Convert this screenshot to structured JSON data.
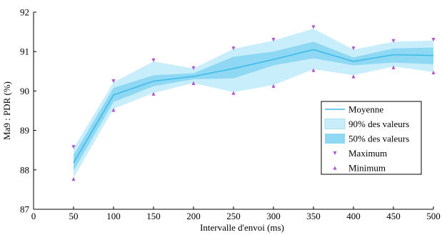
{
  "chart_data": {
    "type": "line",
    "title": "",
    "xlabel": "Intervalle d'envoi (ms)",
    "ylabel": "Ma9 : PDR (%)",
    "xlim": [
      0,
      500
    ],
    "ylim": [
      87,
      92
    ],
    "x_ticks": [
      0,
      50,
      100,
      150,
      200,
      250,
      300,
      350,
      400,
      450,
      500
    ],
    "y_ticks": [
      87,
      88,
      89,
      90,
      91,
      92
    ],
    "grid": false,
    "legend_position": "right",
    "x": [
      50,
      100,
      150,
      200,
      250,
      300,
      350,
      400,
      450,
      500
    ],
    "series": [
      {
        "name": "Moyenne",
        "kind": "line",
        "color": "#3dbce8",
        "values": [
          88.18,
          89.9,
          90.25,
          90.37,
          90.57,
          90.8,
          91.05,
          90.75,
          90.92,
          90.9
        ]
      },
      {
        "name": "90% des valeurs",
        "kind": "band",
        "color": "#c9eefb",
        "lower": [
          87.8,
          89.55,
          89.95,
          90.2,
          89.97,
          90.15,
          90.55,
          90.4,
          90.62,
          90.48
        ],
        "upper": [
          88.55,
          90.22,
          90.75,
          90.57,
          91.07,
          91.28,
          91.58,
          91.05,
          91.25,
          91.28
        ]
      },
      {
        "name": "50% des valeurs",
        "kind": "band",
        "color": "#8fd8f4",
        "lower": [
          87.98,
          89.72,
          90.12,
          90.3,
          90.32,
          90.65,
          90.83,
          90.65,
          90.72,
          90.68
        ],
        "upper": [
          88.38,
          90.08,
          90.4,
          90.45,
          90.87,
          91.0,
          91.25,
          90.85,
          91.08,
          91.1
        ]
      },
      {
        "name": "Maximum",
        "kind": "marker",
        "marker": "triangle-down",
        "color": "#b256d6",
        "values": [
          88.58,
          90.25,
          90.78,
          90.58,
          91.08,
          91.3,
          91.62,
          91.08,
          91.27,
          91.3
        ]
      },
      {
        "name": "Minimum",
        "kind": "marker",
        "marker": "triangle-up",
        "color": "#b256d6",
        "values": [
          87.77,
          89.52,
          89.93,
          90.2,
          89.95,
          90.13,
          90.53,
          90.37,
          90.6,
          90.47
        ]
      }
    ]
  }
}
